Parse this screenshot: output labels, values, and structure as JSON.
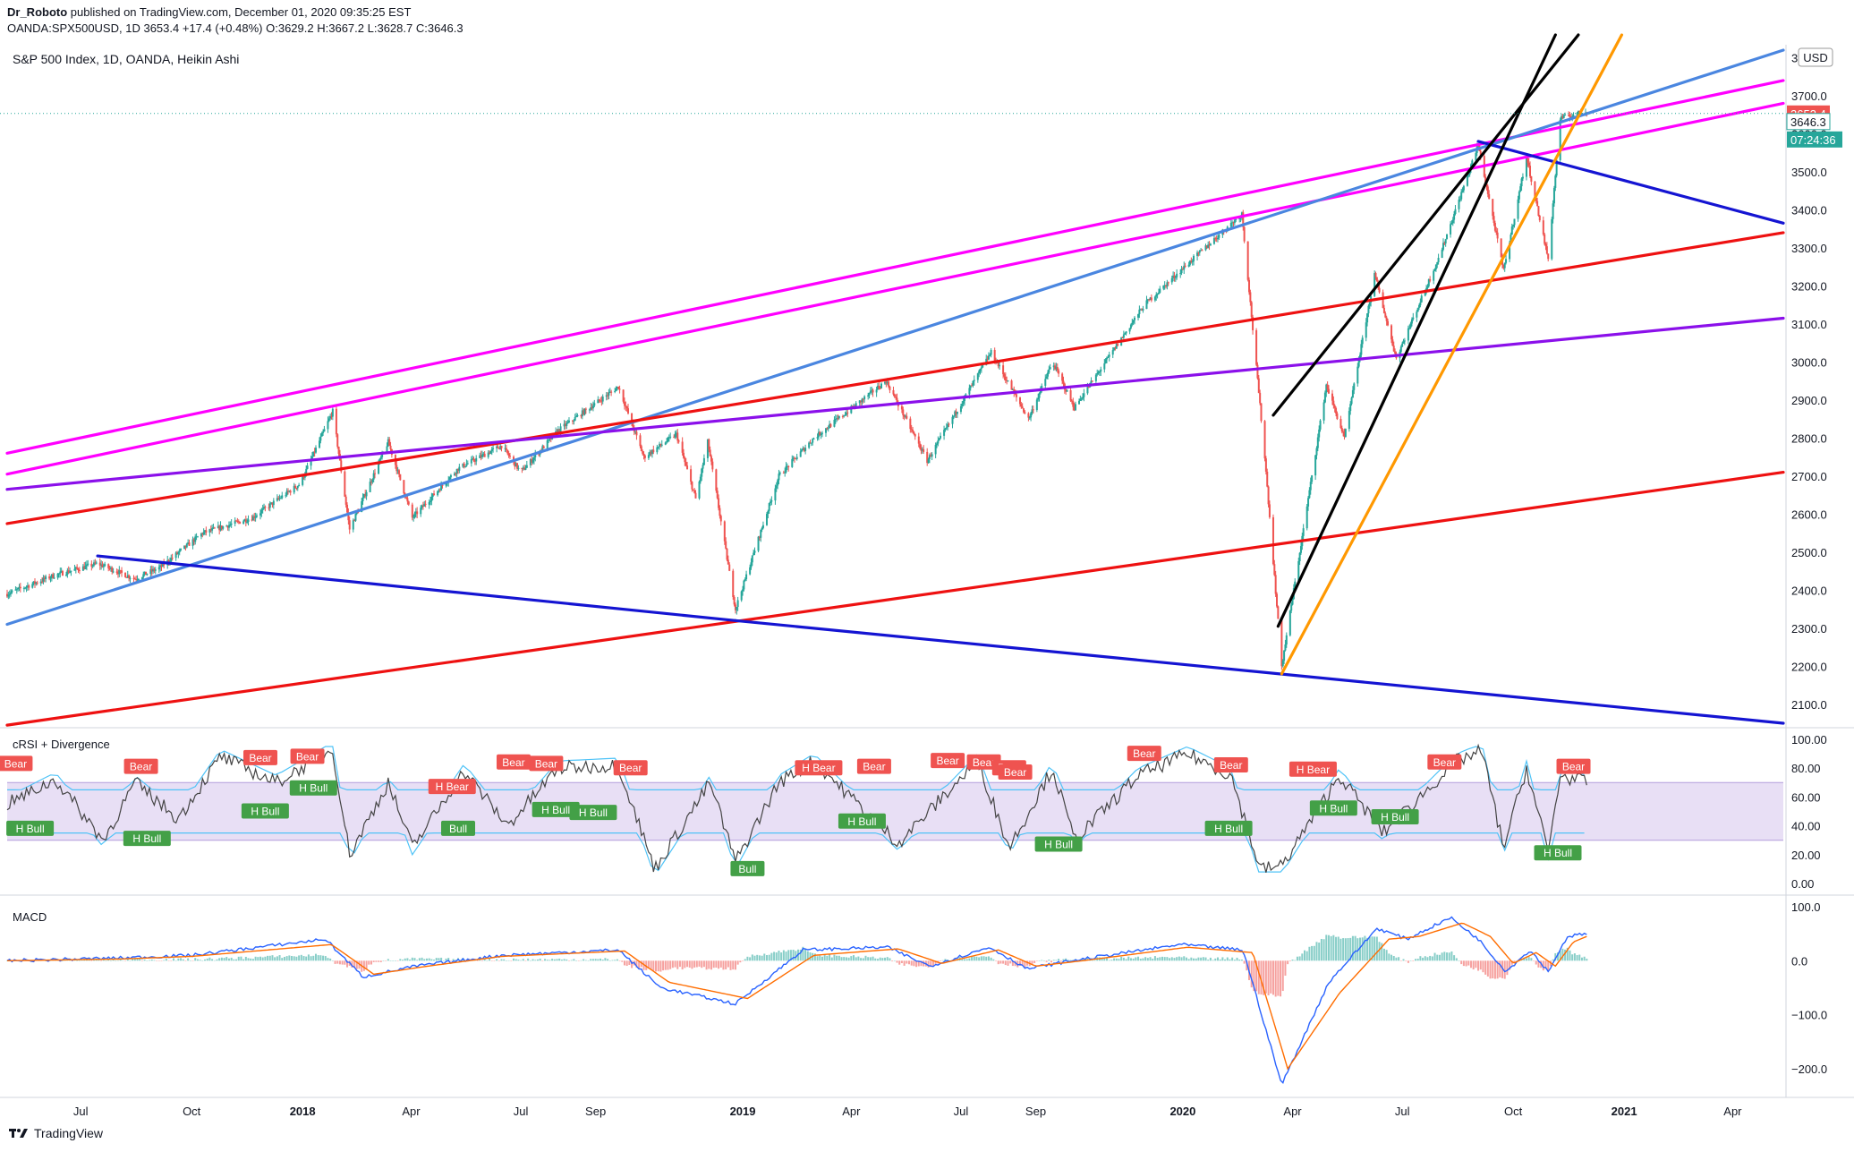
{
  "header": {
    "author": "Dr_Roboto",
    "published": "published on TradingView.com, December 01, 2020 09:35:25 EST",
    "symbol": "OANDA:SPX500USD, 1D",
    "last": "3653.4",
    "change": "+17.4 (+0.48%)",
    "ohlc": {
      "O": "3629.2",
      "H": "3667.2",
      "L": "3628.7",
      "C": "3646.3"
    }
  },
  "footer": {
    "brand": "TradingView"
  },
  "colors": {
    "bull": "#26a69a",
    "bear": "#ef5350",
    "magenta": "#ff00ff",
    "steelblue": "#4a86e0",
    "red": "#ee1111",
    "purple": "#8b10ea",
    "blue": "#1414d2",
    "black": "#000000",
    "orange": "#ff9800",
    "macd": "#2962ff",
    "signal": "#ff6d00",
    "rsi_line": "#444444",
    "band": "#4fc3f7"
  },
  "chart_data": [
    {
      "type": "candlestick",
      "title": "S&P 500 Index, 1D, OANDA, Heikin Ashi",
      "unit": "USD",
      "x_ticks": [
        "Jul",
        "Oct",
        "2018",
        "Apr",
        "Jul",
        "Sep",
        "2019",
        "Apr",
        "Jul",
        "Sep",
        "2020",
        "Apr",
        "Jul",
        "Oct",
        "2021",
        "Apr"
      ],
      "y_ticks": [
        3800,
        3700,
        3600,
        3500,
        3400,
        3300,
        3200,
        3100,
        3000,
        2900,
        2800,
        2700,
        2600,
        2500,
        2400,
        2300,
        2200,
        2100
      ],
      "ylim": [
        2050,
        3820
      ],
      "xlim": [
        "2017-05-01",
        "2021-05-13"
      ],
      "series": [
        {
          "points": [
            [
              "2017-05-01",
              2390
            ],
            [
              "2017-06-10",
              2440
            ],
            [
              "2017-07-15",
              2470
            ],
            [
              "2017-08-15",
              2430
            ],
            [
              "2017-09-05",
              2460
            ],
            [
              "2017-10-10",
              2550
            ],
            [
              "2017-11-20",
              2590
            ],
            [
              "2017-12-30",
              2680
            ],
            [
              "2018-01-26",
              2870
            ],
            [
              "2018-02-09",
              2560
            ],
            [
              "2018-03-13",
              2790
            ],
            [
              "2018-04-02",
              2590
            ],
            [
              "2018-05-10",
              2720
            ],
            [
              "2018-06-15",
              2780
            ],
            [
              "2018-07-01",
              2710
            ],
            [
              "2018-08-01",
              2820
            ],
            [
              "2018-09-20",
              2935
            ],
            [
              "2018-10-11",
              2750
            ],
            [
              "2018-11-07",
              2810
            ],
            [
              "2018-11-23",
              2640
            ],
            [
              "2018-12-03",
              2790
            ],
            [
              "2018-12-26",
              2350
            ],
            [
              "2019-01-31",
              2700
            ],
            [
              "2019-03-01",
              2800
            ],
            [
              "2019-04-30",
              2950
            ],
            [
              "2019-06-03",
              2740
            ],
            [
              "2019-07-26",
              3025
            ],
            [
              "2019-08-26",
              2850
            ],
            [
              "2019-09-15",
              3000
            ],
            [
              "2019-10-03",
              2880
            ],
            [
              "2019-11-30",
              3150
            ],
            [
              "2019-12-30",
              3240
            ],
            [
              "2020-02-19",
              3390
            ],
            [
              "2020-03-09",
              2750
            ],
            [
              "2020-03-23",
              2200
            ],
            [
              "2020-04-29",
              2940
            ],
            [
              "2020-05-14",
              2800
            ],
            [
              "2020-06-08",
              3230
            ],
            [
              "2020-06-26",
              3010
            ],
            [
              "2020-08-01",
              3280
            ],
            [
              "2020-09-02",
              3570
            ],
            [
              "2020-09-23",
              3240
            ],
            [
              "2020-10-12",
              3540
            ],
            [
              "2020-10-30",
              3270
            ],
            [
              "2020-11-09",
              3640
            ],
            [
              "2020-12-01",
              3660
            ]
          ]
        }
      ],
      "last_price": "3653.4",
      "last_close": "3646.3",
      "countdown": "07:24:36",
      "trendlines": [
        {
          "color": "magenta",
          "from": [
            "2017-05-01",
            2760
          ],
          "to": [
            "2021-05-13",
            3740
          ]
        },
        {
          "color": "magenta",
          "from": [
            "2017-05-01",
            2705
          ],
          "to": [
            "2021-05-13",
            3680
          ]
        },
        {
          "color": "steelblue",
          "from": [
            "2017-05-01",
            2310
          ],
          "to": [
            "2021-05-13",
            3820
          ]
        },
        {
          "color": "red",
          "from": [
            "2017-05-01",
            2575
          ],
          "to": [
            "2021-05-13",
            3340
          ]
        },
        {
          "color": "red",
          "from": [
            "2017-05-01",
            2045
          ],
          "to": [
            "2021-05-13",
            2710
          ]
        },
        {
          "color": "purple",
          "from": [
            "2017-05-01",
            2665
          ],
          "to": [
            "2021-05-13",
            3115
          ]
        },
        {
          "color": "blue",
          "from": [
            "2017-07-15",
            2490
          ],
          "to": [
            "2018-12-26",
            2320
          ]
        },
        {
          "color": "blue",
          "from": [
            "2018-12-26",
            2320
          ],
          "to": [
            "2021-05-13",
            2050
          ]
        },
        {
          "color": "blue",
          "from": [
            "2020-09-02",
            3580
          ],
          "to": [
            "2021-05-13",
            3365
          ]
        },
        {
          "color": "black",
          "from": [
            "2020-03-16",
            2860
          ],
          "to": [
            "2020-11-24",
            3860
          ]
        },
        {
          "color": "black",
          "from": [
            "2020-03-20",
            2305
          ],
          "to": [
            "2020-11-05",
            3860
          ]
        },
        {
          "color": "orange",
          "from": [
            "2020-03-23",
            2180
          ],
          "to": [
            "2020-12-30",
            3860
          ]
        }
      ]
    },
    {
      "type": "line",
      "title": "cRSI + Divergence",
      "ylim": [
        0,
        100
      ],
      "y_ticks": [
        100,
        80,
        60,
        40,
        20,
        0
      ],
      "band": [
        30,
        70
      ],
      "series": [
        {
          "name": "cRSI",
          "points": [
            [
              "2017-05-01",
              55
            ],
            [
              "2017-06-10",
              72
            ],
            [
              "2017-07-20",
              30
            ],
            [
              "2017-08-15",
              70
            ],
            [
              "2017-09-20",
              45
            ],
            [
              "2017-10-25",
              88
            ],
            [
              "2017-12-10",
              70
            ],
            [
              "2018-01-26",
              93
            ],
            [
              "2018-02-09",
              20
            ],
            [
              "2018-03-13",
              70
            ],
            [
              "2018-04-02",
              25
            ],
            [
              "2018-05-15",
              78
            ],
            [
              "2018-06-20",
              40
            ],
            [
              "2018-08-01",
              80
            ],
            [
              "2018-09-20",
              82
            ],
            [
              "2018-10-20",
              10
            ],
            [
              "2018-12-05",
              70
            ],
            [
              "2018-12-26",
              15
            ],
            [
              "2019-01-31",
              70
            ],
            [
              "2019-03-01",
              85
            ],
            [
              "2019-05-10",
              28
            ],
            [
              "2019-07-15",
              85
            ],
            [
              "2019-08-10",
              25
            ],
            [
              "2019-09-15",
              80
            ],
            [
              "2019-10-03",
              30
            ],
            [
              "2019-11-25",
              75
            ],
            [
              "2020-01-05",
              90
            ],
            [
              "2020-02-10",
              75
            ],
            [
              "2020-03-05",
              10
            ],
            [
              "2020-03-23",
              12
            ],
            [
              "2020-05-10",
              75
            ],
            [
              "2020-06-15",
              35
            ],
            [
              "2020-08-15",
              85
            ],
            [
              "2020-09-05",
              92
            ],
            [
              "2020-09-23",
              25
            ],
            [
              "2020-10-12",
              80
            ],
            [
              "2020-10-30",
              22
            ],
            [
              "2020-11-09",
              75
            ],
            [
              "2020-12-01",
              70
            ]
          ]
        }
      ],
      "divergences": [
        {
          "label": "Bear",
          "date": "2017-05-08",
          "value": 83
        },
        {
          "label": "Bear",
          "date": "2017-08-20",
          "value": 81
        },
        {
          "label": "Bear",
          "date": "2017-11-27",
          "value": 87
        },
        {
          "label": "Bear",
          "date": "2018-01-05",
          "value": 88
        },
        {
          "label": "H Bull",
          "date": "2018-01-10",
          "value": 66
        },
        {
          "label": "H Bull",
          "date": "2017-12-01",
          "value": 50
        },
        {
          "label": "H Bull",
          "date": "2017-05-20",
          "value": 38
        },
        {
          "label": "H Bull",
          "date": "2017-08-25",
          "value": 31
        },
        {
          "label": "H Bear",
          "date": "2018-05-05",
          "value": 67
        },
        {
          "label": "Bull",
          "date": "2018-05-10",
          "value": 38
        },
        {
          "label": "Bear",
          "date": "2018-06-25",
          "value": 84
        },
        {
          "label": "Bear",
          "date": "2018-07-22",
          "value": 83
        },
        {
          "label": "H Bull",
          "date": "2018-07-30",
          "value": 51
        },
        {
          "label": "H Bull",
          "date": "2018-08-30",
          "value": 49
        },
        {
          "label": "Bear",
          "date": "2018-09-30",
          "value": 80
        },
        {
          "label": "Bull",
          "date": "2019-01-05",
          "value": 10
        },
        {
          "label": "H Bear",
          "date": "2019-03-05",
          "value": 80
        },
        {
          "label": "Bear",
          "date": "2019-04-20",
          "value": 81
        },
        {
          "label": "H Bull",
          "date": "2019-04-10",
          "value": 43
        },
        {
          "label": "Bear",
          "date": "2019-06-20",
          "value": 85
        },
        {
          "label": "Bear",
          "date": "2019-07-20",
          "value": 84
        },
        {
          "label": "Bear",
          "date": "2019-08-10",
          "value": 80
        },
        {
          "label": "Bear",
          "date": "2019-08-15",
          "value": 77
        },
        {
          "label": "H Bull",
          "date": "2019-09-20",
          "value": 27
        },
        {
          "label": "Bear",
          "date": "2019-11-30",
          "value": 90
        },
        {
          "label": "Bear",
          "date": "2020-02-10",
          "value": 82
        },
        {
          "label": "H Bull",
          "date": "2020-02-08",
          "value": 38
        },
        {
          "label": "H Bear",
          "date": "2020-04-18",
          "value": 79
        },
        {
          "label": "H Bull",
          "date": "2020-05-05",
          "value": 52
        },
        {
          "label": "H Bull",
          "date": "2020-06-25",
          "value": 46
        },
        {
          "label": "Bear",
          "date": "2020-08-05",
          "value": 84
        },
        {
          "label": "Bear",
          "date": "2020-11-20",
          "value": 81
        },
        {
          "label": "H Bull",
          "date": "2020-11-07",
          "value": 21
        }
      ]
    },
    {
      "type": "line",
      "title": "MACD",
      "ylim": [
        -240,
        105
      ],
      "y_ticks": [
        100,
        0,
        -100,
        -200
      ],
      "y_tick_labels": [
        "100.0",
        "0.0",
        "−100.0",
        "−200.0"
      ],
      "series": [
        {
          "name": "MACD",
          "points": [
            [
              "2017-05-01",
              0
            ],
            [
              "2017-08-01",
              5
            ],
            [
              "2017-10-01",
              10
            ],
            [
              "2018-01-20",
              40
            ],
            [
              "2018-02-20",
              -30
            ],
            [
              "2018-04-05",
              -10
            ],
            [
              "2018-06-15",
              10
            ],
            [
              "2018-09-20",
              20
            ],
            [
              "2018-10-25",
              -50
            ],
            [
              "2018-12-26",
              -80
            ],
            [
              "2019-02-20",
              20
            ],
            [
              "2019-05-01",
              25
            ],
            [
              "2019-06-05",
              -10
            ],
            [
              "2019-07-25",
              25
            ],
            [
              "2019-08-25",
              -15
            ],
            [
              "2019-10-01",
              0
            ],
            [
              "2019-12-30",
              30
            ],
            [
              "2020-02-20",
              20
            ],
            [
              "2020-03-23",
              -230
            ],
            [
              "2020-05-01",
              -40
            ],
            [
              "2020-06-10",
              60
            ],
            [
              "2020-07-05",
              40
            ],
            [
              "2020-08-10",
              80
            ],
            [
              "2020-09-02",
              40
            ],
            [
              "2020-09-25",
              -20
            ],
            [
              "2020-10-15",
              20
            ],
            [
              "2020-10-30",
              -20
            ],
            [
              "2020-11-15",
              45
            ],
            [
              "2020-12-01",
              50
            ]
          ]
        },
        {
          "name": "Signal",
          "points": [
            [
              "2017-05-01",
              0
            ],
            [
              "2017-08-01",
              3
            ],
            [
              "2017-10-01",
              8
            ],
            [
              "2018-01-25",
              30
            ],
            [
              "2018-03-01",
              -25
            ],
            [
              "2018-04-15",
              -10
            ],
            [
              "2018-06-15",
              8
            ],
            [
              "2018-09-25",
              18
            ],
            [
              "2018-11-01",
              -40
            ],
            [
              "2019-01-05",
              -70
            ],
            [
              "2019-03-01",
              10
            ],
            [
              "2019-05-10",
              22
            ],
            [
              "2019-06-15",
              -5
            ],
            [
              "2019-08-01",
              20
            ],
            [
              "2019-09-01",
              -10
            ],
            [
              "2019-10-10",
              0
            ],
            [
              "2020-01-05",
              25
            ],
            [
              "2020-02-28",
              15
            ],
            [
              "2020-03-28",
              -200
            ],
            [
              "2020-05-10",
              -60
            ],
            [
              "2020-06-20",
              40
            ],
            [
              "2020-07-15",
              45
            ],
            [
              "2020-08-20",
              70
            ],
            [
              "2020-09-12",
              45
            ],
            [
              "2020-10-01",
              -5
            ],
            [
              "2020-10-20",
              15
            ],
            [
              "2020-11-05",
              -10
            ],
            [
              "2020-11-20",
              35
            ],
            [
              "2020-12-01",
              45
            ]
          ]
        }
      ]
    }
  ]
}
